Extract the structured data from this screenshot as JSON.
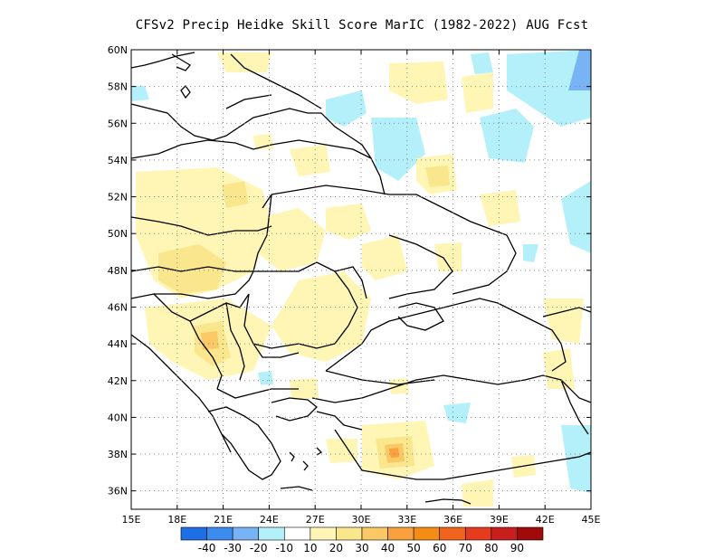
{
  "title": "CFSv2 Precip Heidke Skill Score MarIC (1982-2022) AUG Fcst",
  "x_ticks": [
    "15E",
    "18E",
    "21E",
    "24E",
    "27E",
    "30E",
    "33E",
    "36E",
    "39E",
    "42E",
    "45E"
  ],
  "y_ticks": [
    "60N",
    "58N",
    "56N",
    "54N",
    "52N",
    "50N",
    "48N",
    "46N",
    "44N",
    "42N",
    "40N",
    "38N",
    "36N"
  ],
  "colorbar": {
    "colors": [
      "#1e6ee6",
      "#3c8cf0",
      "#78b4f5",
      "#b4f0fa",
      "#ffffff",
      "#fff5b4",
      "#fae68c",
      "#fac864",
      "#faa03c",
      "#f58c14",
      "#f0641e",
      "#e63c1e",
      "#c81e1e",
      "#a00a0a"
    ],
    "labels": [
      "-40",
      "-30",
      "-20",
      "-10",
      "10",
      "20",
      "30",
      "40",
      "50",
      "60",
      "70",
      "80",
      "90"
    ]
  },
  "colors": {
    "light_yellow": "#fff5b4",
    "yellow": "#fae68c",
    "orange_light": "#fac864",
    "orange": "#faa03c",
    "light_blue": "#b4f0fa",
    "blue": "#78b4f5"
  }
}
